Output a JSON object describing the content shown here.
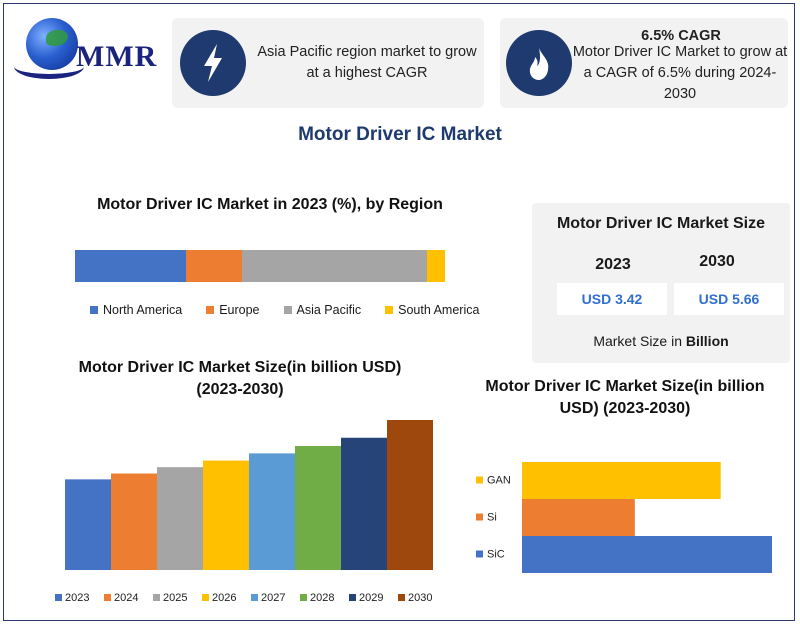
{
  "logo": {
    "text": "MMR"
  },
  "card1": {
    "icon": "lightning-icon",
    "text": "Asia Pacific region market to grow at a highest CAGR"
  },
  "card2": {
    "icon": "flame-icon",
    "title": "6.5% CAGR",
    "text": "Motor Driver IC Market to grow at a CAGR of 6.5% during 2024-2030"
  },
  "main_title": "Motor Driver IC Market",
  "size_panel": {
    "title": "Motor Driver IC Market Size",
    "year1": "2023",
    "value1": "USD 3.42",
    "year2": "2030",
    "value2": "USD 5.66",
    "unit_prefix": "Market Size in ",
    "unit_bold": "Billion"
  },
  "colors": {
    "blue": "#4472c4",
    "orange": "#ed7d31",
    "gray": "#a5a5a5",
    "yellow": "#ffc000",
    "lightblue": "#5b9bd5",
    "green": "#70ad47",
    "navy": "#264478",
    "brown": "#9e480e"
  },
  "chart_data": [
    {
      "type": "bar",
      "orientation": "stacked-horizontal",
      "title": "Motor Driver IC Market in 2023 (%), by Region",
      "categories": [
        "North America",
        "Europe",
        "Asia Pacific",
        "South America"
      ],
      "values": [
        30,
        15,
        50,
        5
      ],
      "colors": [
        "#4472c4",
        "#ed7d31",
        "#a5a5a5",
        "#ffc000"
      ],
      "legend": "bottom"
    },
    {
      "type": "bar",
      "title": "Motor Driver IC Market Size(in billion USD) (2023-2030)",
      "categories": [
        "2023",
        "2024",
        "2025",
        "2026",
        "2027",
        "2028",
        "2029",
        "2030"
      ],
      "values": [
        3.42,
        3.64,
        3.88,
        4.13,
        4.4,
        4.68,
        4.99,
        5.66
      ],
      "colors": [
        "#4472c4",
        "#ed7d31",
        "#a5a5a5",
        "#ffc000",
        "#5b9bd5",
        "#70ad47",
        "#264478",
        "#9e480e"
      ],
      "legend": "bottom"
    },
    {
      "type": "bar",
      "orientation": "horizontal",
      "title": "Motor Driver IC Market Size(in billion USD) (2023-2030)",
      "categories": [
        "GAN",
        "Si",
        "SiC"
      ],
      "values": [
        1.55,
        0.88,
        1.95
      ],
      "colors": [
        "#ffc000",
        "#ed7d31",
        "#4472c4"
      ]
    }
  ]
}
